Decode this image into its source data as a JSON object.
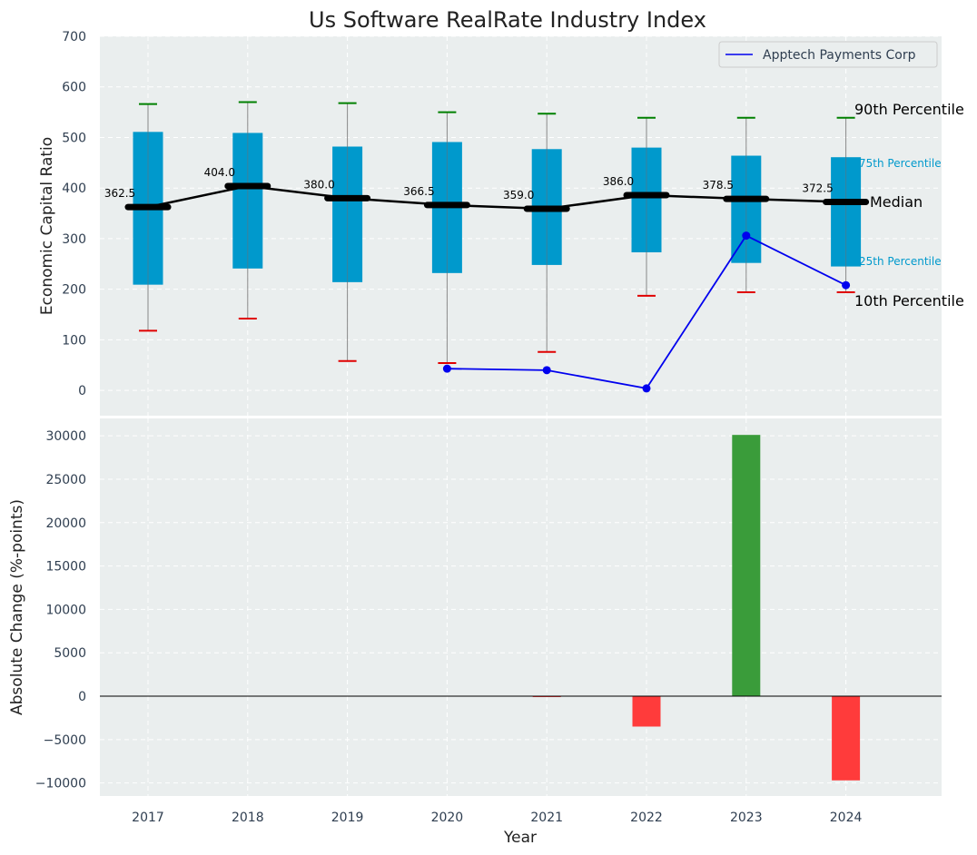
{
  "chart_data": [
    {
      "type": "box",
      "title": "Us Software RealRate Industry Index",
      "ylabel": "Economic Capital Ratio",
      "ylim": [
        -50,
        700
      ],
      "yticks": [
        0,
        100,
        200,
        300,
        400,
        500,
        600,
        700
      ],
      "categories": [
        "2017",
        "2018",
        "2019",
        "2020",
        "2021",
        "2022",
        "2023",
        "2024"
      ],
      "grid": true,
      "legend_position": "top-right",
      "p10": [
        118,
        142,
        58,
        54,
        76,
        187,
        194,
        194
      ],
      "p25": [
        209,
        241,
        214,
        232,
        248,
        273,
        252,
        245
      ],
      "median": [
        362.5,
        404.0,
        380.0,
        366.5,
        359.0,
        386.0,
        378.5,
        372.5
      ],
      "median_labels": [
        "362.5",
        "404.0",
        "380.0",
        "366.5",
        "359.0",
        "386.0",
        "378.5",
        "372.5"
      ],
      "p75": [
        511,
        509,
        482,
        491,
        477,
        480,
        464,
        461
      ],
      "p90": [
        566,
        570,
        568,
        550,
        547,
        539,
        539,
        539
      ],
      "series": [
        {
          "name": "Apptech Payments Corp",
          "x": [
            "2020",
            "2021",
            "2022",
            "2023",
            "2024"
          ],
          "values": [
            43,
            40,
            4,
            306,
            208
          ],
          "color": "#0000ee"
        }
      ],
      "percentile_labels": {
        "p90": "90th Percentile",
        "p75": "75th Percentile",
        "median": "Median",
        "p25": "25th Percentile",
        "p10": "10th Percentile"
      },
      "colors": {
        "box": "#0099cc",
        "median": "#000000",
        "p90_cap": "#008000",
        "p10_cap": "#e00000",
        "whisker": "#888888"
      }
    },
    {
      "type": "bar",
      "ylabel": "Absolute Change (%-points)",
      "xlabel": "Year",
      "ylim": [
        -11500,
        32000
      ],
      "yticks": [
        -10000,
        -5000,
        0,
        5000,
        10000,
        15000,
        20000,
        25000,
        30000
      ],
      "ytick_labels": [
        "−10000",
        "−5000",
        "0",
        "5000",
        "10000",
        "15000",
        "20000",
        "25000",
        "30000"
      ],
      "categories": [
        "2017",
        "2018",
        "2019",
        "2020",
        "2021",
        "2022",
        "2023",
        "2024"
      ],
      "values": [
        0,
        0,
        0,
        0,
        -7,
        -3500,
        30100,
        -9700
      ],
      "grid": true,
      "colors": {
        "positive": "#3a9c3a",
        "negative": "#ff3b3b"
      }
    }
  ],
  "colors": {
    "panel_bg": "#eaeeee",
    "grid": "#ffffff",
    "tick_text": "#2f3e50"
  }
}
